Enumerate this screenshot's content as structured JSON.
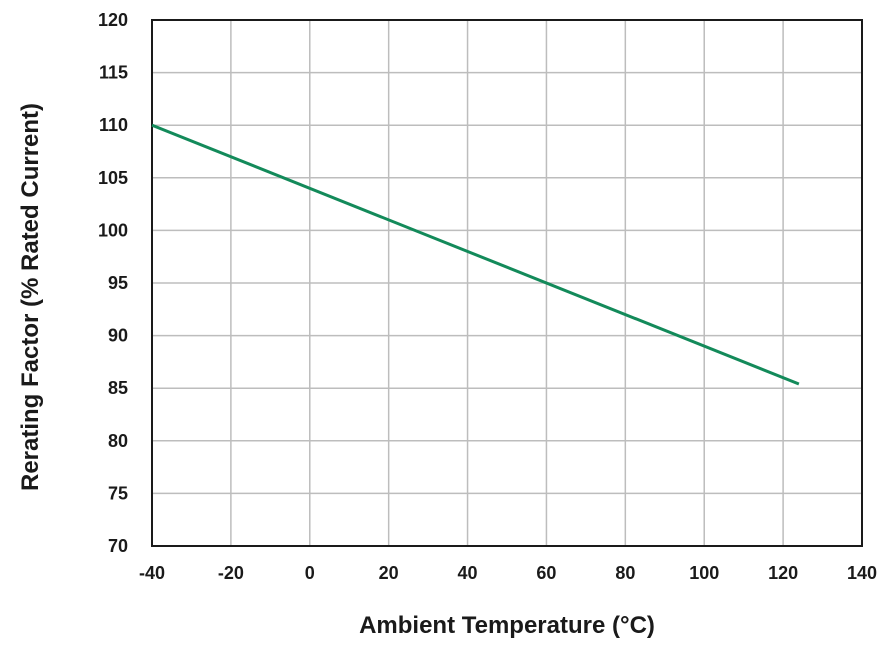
{
  "chart_data": {
    "type": "line",
    "title": "",
    "xlabel": "Ambient Temperature (°C)",
    "ylabel": "Rerating Factor (% Rated Current)",
    "xlim": [
      -40,
      140
    ],
    "ylim": [
      70,
      120
    ],
    "x_ticks": [
      -40,
      -20,
      0,
      20,
      40,
      60,
      80,
      100,
      120,
      140
    ],
    "y_ticks": [
      70,
      75,
      80,
      85,
      90,
      95,
      100,
      105,
      110,
      115,
      120
    ],
    "grid": true,
    "series": [
      {
        "color": "#138a5a",
        "x": [
          -40,
          124
        ],
        "y": [
          110,
          85.4
        ]
      }
    ]
  }
}
